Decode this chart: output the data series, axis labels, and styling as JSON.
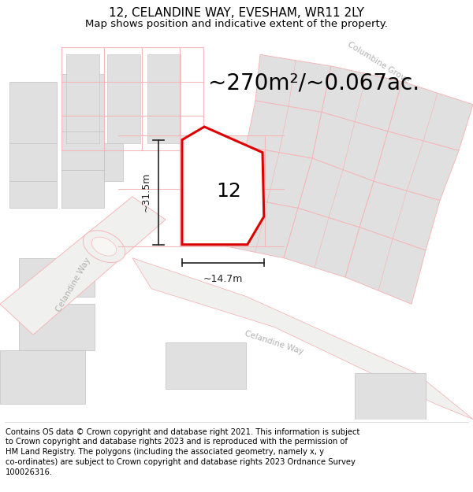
{
  "title": "12, CELANDINE WAY, EVESHAM, WR11 2LY",
  "subtitle": "Map shows position and indicative extent of the property.",
  "area_text": "~270m²/~0.067ac.",
  "property_number": "12",
  "dim_width": "~14.7m",
  "dim_height": "~31.5m",
  "footer": "Contains OS data © Crown copyright and database right 2021. This information is subject to Crown copyright and database rights 2023 and is reproduced with the permission of HM Land Registry. The polygons (including the associated geometry, namely x, y co-ordinates) are subject to Crown copyright and database rights 2023 Ordnance Survey 100026316.",
  "bg_color": "#ffffff",
  "map_bg": "#f7f6f4",
  "building_fill": "#e0e0e0",
  "building_edge": "#c0c0c0",
  "plot_line_color": "#f5b8b8",
  "plot_border": "#dd0000",
  "dim_color": "#222222",
  "text_color": "#333333",
  "road_label_color": "#aaaaaa",
  "title_fontsize": 11,
  "subtitle_fontsize": 9.5,
  "area_fontsize": 20,
  "number_fontsize": 18,
  "footer_fontsize": 7.2,
  "dim_fontsize": 9
}
